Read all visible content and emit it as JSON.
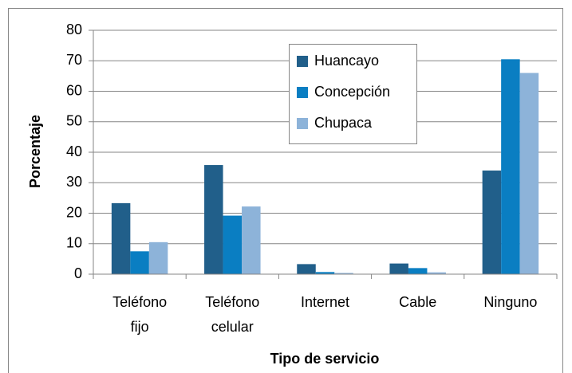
{
  "chart_data": {
    "type": "bar",
    "categories": [
      "Teléfono fijo",
      "Teléfono celular",
      "Internet",
      "Cable",
      "Ninguno"
    ],
    "series": [
      {
        "name": "Huancayo",
        "color": "#215f8a",
        "values": [
          23.3,
          35.8,
          3.3,
          3.5,
          34
        ]
      },
      {
        "name": "Concepción",
        "color": "#0a7ec2",
        "values": [
          7.5,
          19.2,
          0.7,
          2,
          70.5
        ]
      },
      {
        "name": "Chupaca",
        "color": "#8db3d9",
        "values": [
          10.5,
          22.2,
          0.4,
          0.6,
          66
        ]
      }
    ],
    "ylim": [
      0,
      80
    ],
    "yticks": [
      0,
      10,
      20,
      30,
      40,
      50,
      60,
      70,
      80
    ],
    "grid": true,
    "ylabel": "Porcentaje",
    "xlabel": "Tipo de servicio",
    "legend": "upper center"
  }
}
